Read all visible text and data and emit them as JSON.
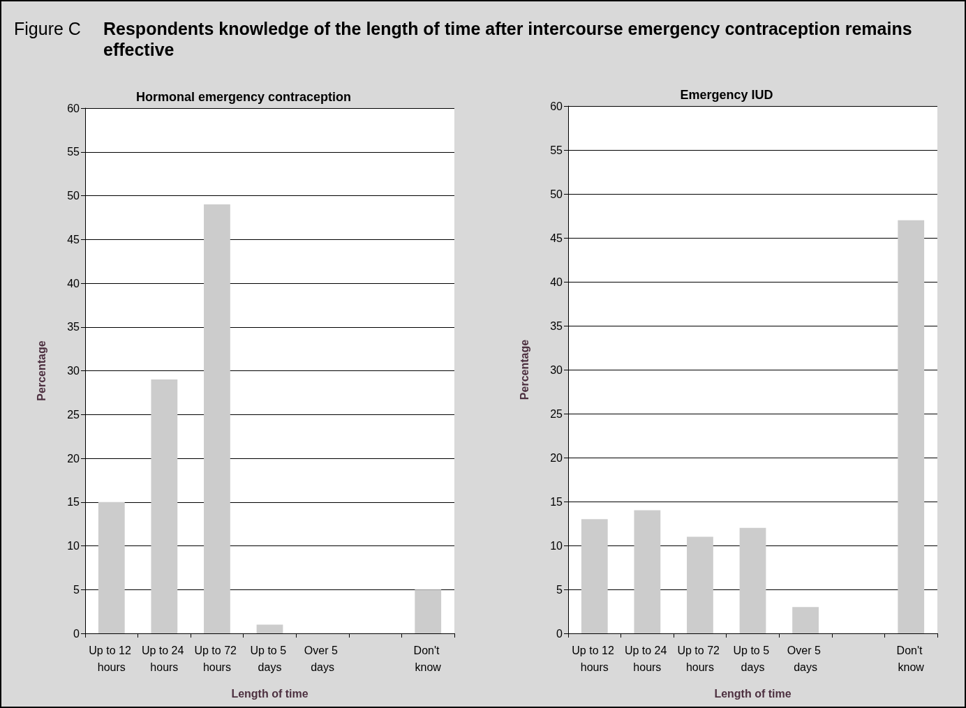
{
  "chart_data": [
    {
      "type": "bar",
      "title": "Hormonal emergency contraception",
      "annotations": [
        "Figure C",
        "Respondents knowledge of the length of time after intercourse emergency contraception remains effective"
      ],
      "categories": [
        "Up to 12 hours",
        "Up to 24 hours",
        "Up to 72 hours",
        "Up to 5 days",
        "Over 5 days",
        null,
        "Don't know"
      ],
      "values": [
        15,
        29,
        49,
        1,
        0,
        null,
        5
      ],
      "color": "#cccccc",
      "xlabel": "Length of time",
      "ylabel": "Percentage",
      "ylim": [
        0,
        60
      ],
      "yticks": [
        0,
        5,
        10,
        15,
        20,
        25,
        30,
        35,
        40,
        45,
        50,
        55,
        60
      ],
      "grid": "y"
    },
    {
      "type": "bar",
      "title": "Emergency IUD",
      "categories": [
        "Up to 12 hours",
        "Up to 24 hours",
        "Up to 72 hours",
        "Up to 5 days",
        "Over 5 days",
        null,
        "Don't know"
      ],
      "values": [
        13,
        14,
        11,
        12,
        3,
        null,
        47
      ],
      "color": "#cccccc",
      "xlabel": "Length of time",
      "ylabel": "Percentage",
      "ylim": [
        0,
        60
      ],
      "yticks": [
        0,
        5,
        10,
        15,
        20,
        25,
        30,
        35,
        40,
        45,
        50,
        55,
        60
      ],
      "grid": "y"
    }
  ]
}
